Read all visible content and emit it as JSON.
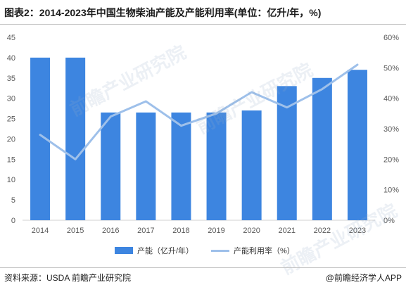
{
  "header": {
    "title": "图表2：2014-2023年中国生物柴油产能及产能利用率(单位：亿升/年，%)"
  },
  "footer": {
    "source": "资料来源：USDA 前瞻产业研究院",
    "credit": "@前瞻经济学人APP"
  },
  "watermark": {
    "text": "前瞻产业研究院"
  },
  "colors": {
    "bar": "#3d85e0",
    "line": "#9ec0ea",
    "axis_text": "#595959",
    "grid": "#e4e4e4"
  },
  "chart_data": {
    "type": "bar",
    "categories": [
      "2014",
      "2015",
      "2016",
      "2017",
      "2018",
      "2019",
      "2020",
      "2021",
      "2022",
      "2023"
    ],
    "series": [
      {
        "name": "产能（亿升/年）",
        "type": "bar",
        "axis": "left",
        "values": [
          40,
          40,
          26.5,
          26.5,
          26.5,
          26.5,
          27,
          33,
          35,
          37
        ]
      },
      {
        "name": "产能利用率（%）",
        "type": "line",
        "axis": "right",
        "values": [
          28,
          20,
          34,
          39,
          31,
          35,
          42,
          37,
          43,
          51
        ]
      }
    ],
    "y_left": {
      "min": 0,
      "max": 45,
      "ticks": [
        "0",
        "5",
        "10",
        "15",
        "20",
        "25",
        "30",
        "35",
        "40",
        "45"
      ]
    },
    "y_right": {
      "min": 0,
      "max": 60,
      "ticks": [
        "0%",
        "10%",
        "20%",
        "30%",
        "40%",
        "50%",
        "60%"
      ]
    },
    "grid": false,
    "legend_position": "bottom"
  }
}
